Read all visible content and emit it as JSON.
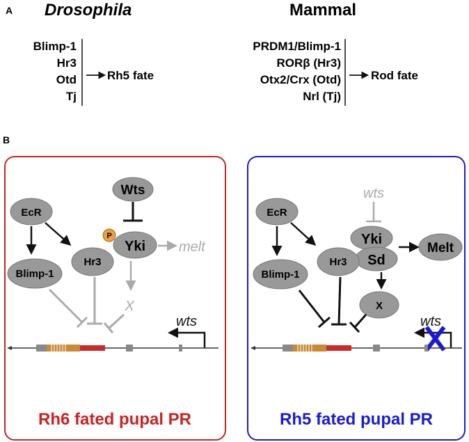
{
  "panel_a": {
    "letter": "A",
    "left_header": "Drosophila",
    "right_header": "Mammal",
    "left_genes": [
      "Blimp-1",
      "Hr3",
      "Otd",
      "Tj"
    ],
    "left_fate": "Rh5 fate",
    "right_genes": [
      "PRDM1/Blimp-1",
      "RORβ (Hr3)",
      "Otx2/Crx (Otd)",
      "Nrl (Tj)"
    ],
    "right_fate": "Rod fate"
  },
  "panel_b": {
    "letter": "B",
    "left": {
      "border_color": "#cc2222",
      "nodes": {
        "wts": "Wts",
        "ecr": "EcR",
        "yki": "Yki",
        "blimp": "Blimp-1",
        "hr3": "Hr3",
        "phospho": "P"
      },
      "melt": "melt",
      "x": "X",
      "promoter": "wts",
      "caption": "Rh6 fated pupal PR",
      "caption_color": "#cc2222"
    },
    "right": {
      "border_color": "#1a1ad6",
      "nodes": {
        "ecr": "EcR",
        "yki": "Yki",
        "sd": "Sd",
        "melt": "Melt",
        "blimp": "Blimp-1",
        "hr3": "Hr3",
        "x": "X"
      },
      "wts_inactive": "wts",
      "promoter": "wts",
      "caption": "Rh5 fated pupal PR",
      "caption_color": "#1a1ad6"
    }
  }
}
